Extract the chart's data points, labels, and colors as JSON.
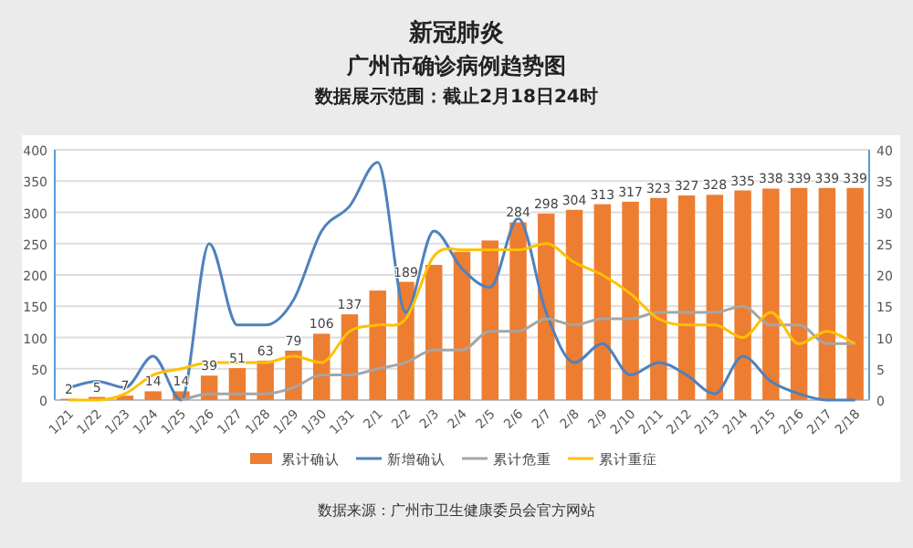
{
  "chart_data": {
    "type": "bar",
    "title": "新冠肺炎",
    "subtitle": "广州市确诊病例趋势图",
    "annotations": [
      "数据展示范围：截止2月18日24时",
      "数据来源：广州市卫生健康委员会官方网站"
    ],
    "categories": [
      "1/21",
      "1/22",
      "1/23",
      "1/24",
      "1/25",
      "1/26",
      "1/27",
      "1/28",
      "1/29",
      "1/30",
      "1/31",
      "2/1",
      "2/2",
      "2/3",
      "2/4",
      "2/5",
      "2/6",
      "2/7",
      "2/8",
      "2/9",
      "2/10",
      "2/11",
      "2/12",
      "2/13",
      "2/14",
      "2/15",
      "2/16",
      "2/17",
      "2/18"
    ],
    "series": [
      {
        "name": "累计确认",
        "color": "#ed7d31",
        "values": [
          2,
          5,
          7,
          14,
          14,
          39,
          51,
          63,
          79,
          106,
          137,
          175,
          189,
          216,
          237,
          255,
          284,
          298,
          304,
          313,
          317,
          323,
          327,
          328,
          335,
          338,
          339,
          339,
          339
        ],
        "value_labels": [
          "2",
          "5",
          "7",
          "14",
          "14",
          "39",
          "51",
          "63",
          "79",
          "106",
          "137",
          null,
          "189",
          null,
          null,
          null,
          "284",
          "298",
          "304",
          "313",
          "317",
          "323",
          "327",
          "328",
          "335",
          "338",
          "339",
          "339",
          "339"
        ]
      },
      {
        "name": "新增确认",
        "type": "line",
        "axis": "y2",
        "color": "#4f81bd",
        "values": [
          2,
          3,
          2,
          7,
          0,
          25,
          12,
          12,
          16,
          27,
          31,
          38,
          14,
          27,
          21,
          18,
          29,
          14,
          6,
          9,
          4,
          6,
          4,
          1,
          7,
          3,
          1,
          0,
          0
        ]
      },
      {
        "name": "累计危重",
        "type": "line",
        "axis": "y2",
        "color": "#a5a5a5",
        "values": [
          null,
          null,
          null,
          null,
          0,
          1,
          1,
          1,
          2,
          4,
          4,
          5,
          6,
          8,
          8,
          11,
          11,
          13,
          12,
          13,
          13,
          14,
          14,
          14,
          15,
          12,
          12,
          9,
          9
        ]
      },
      {
        "name": "累计重症",
        "type": "line",
        "axis": "y2",
        "color": "#ffc000",
        "values": [
          0,
          0,
          1,
          4,
          5,
          6,
          6,
          6,
          7,
          6,
          11,
          12,
          13,
          23,
          24,
          24,
          24,
          25,
          22,
          20,
          17,
          13,
          12,
          12,
          10,
          14,
          9,
          11,
          9
        ]
      }
    ],
    "ylim": [
      0,
      400
    ],
    "yticks": [
      0,
      50,
      100,
      150,
      200,
      250,
      300,
      350,
      400
    ],
    "y2lim": [
      0,
      40
    ],
    "y2ticks": [
      0,
      5,
      10,
      15,
      20,
      25,
      30,
      35,
      40
    ],
    "grid": "y",
    "legend": "bottom"
  }
}
